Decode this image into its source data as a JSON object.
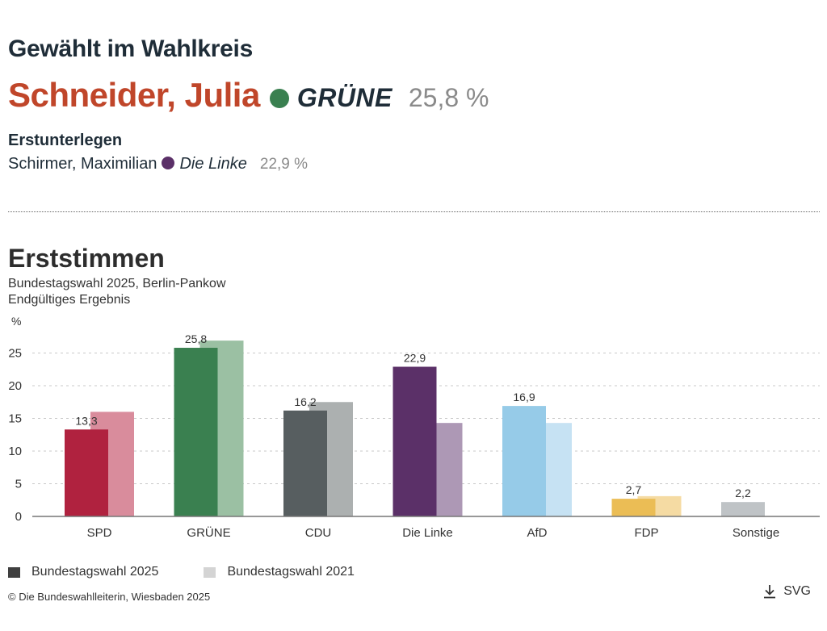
{
  "header": {
    "title": "Gewählt im Wahlkreis",
    "winner": {
      "name": "Schneider, Julia",
      "party": "GRÜNE",
      "party_color": "#3a8050",
      "percent": "25,8 %"
    },
    "runner_up_label": "Erstunterlegen",
    "runner_up": {
      "name": "Schirmer, Maximilian",
      "party": "Die Linke",
      "party_color": "#5b3068",
      "percent": "22,9 %"
    }
  },
  "colors": {
    "name_accent": "#c0462a",
    "legend_2025": "#3f3f3f",
    "legend_2021": "#d4d4d4"
  },
  "legend": {
    "items": [
      "Bundestagswahl 2025",
      "Bundestagswahl 2021"
    ]
  },
  "footer": {
    "credit": "© Die Bundeswahlleiterin, Wiesbaden 2025",
    "download_label": "SVG",
    "download_icon": "download-icon"
  },
  "chart_data": {
    "type": "bar",
    "title": "Erststimmen",
    "subtitle": [
      "Bundestagswahl 2025, Berlin-Pankow",
      "Endgültiges Ergebnis"
    ],
    "ylabel": "%",
    "xlabel": "",
    "ylim": [
      0,
      25
    ],
    "yticks": [
      0,
      5,
      10,
      15,
      20,
      25
    ],
    "grid": true,
    "legend_position": "bottom-left",
    "categories": [
      "SPD",
      "GRÜNE",
      "CDU",
      "Die Linke",
      "AfD",
      "FDP",
      "Sonstige"
    ],
    "series": [
      {
        "name": "Bundestagswahl 2025",
        "values": [
          13.3,
          25.8,
          16.2,
          22.9,
          16.9,
          2.7,
          2.2
        ],
        "labels": [
          "13,3",
          "25,8",
          "16,2",
          "22,9",
          "16,9",
          "2,7",
          "2,2"
        ],
        "colors": [
          "#b0223f",
          "#3a8050",
          "#575e60",
          "#5b3068",
          "#96cbe8",
          "#ebbd55",
          "#bfc3c6"
        ]
      },
      {
        "name": "Bundestagswahl 2021",
        "values": [
          16.0,
          26.9,
          17.5,
          14.3,
          14.3,
          3.1,
          null
        ],
        "colors": [
          "#d98c9c",
          "#9bc0a3",
          "#acb0b0",
          "#ad98b5",
          "#c6e2f3",
          "#f5dba3",
          "#dfe1e2"
        ]
      }
    ]
  }
}
